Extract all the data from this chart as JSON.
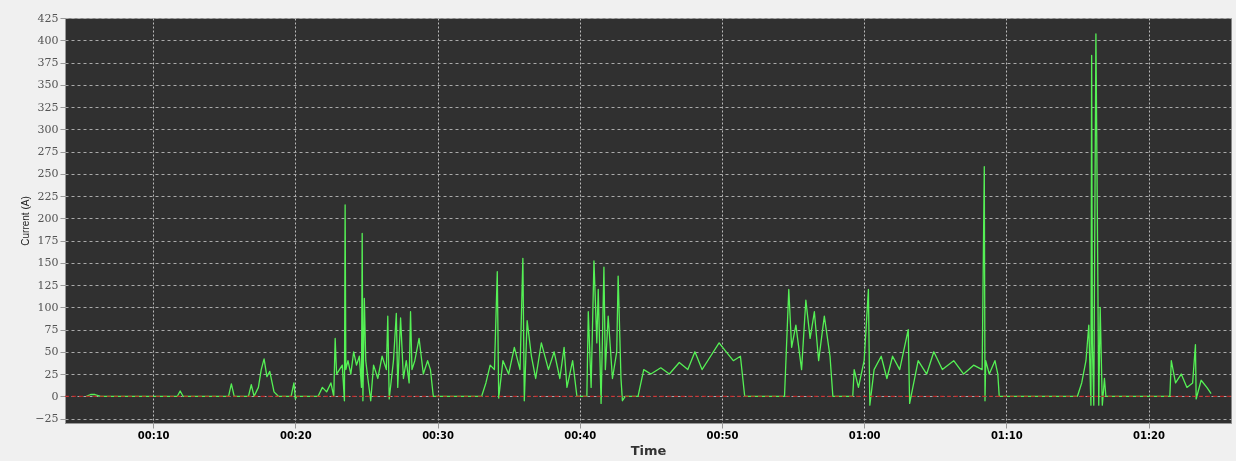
{
  "chart_data": {
    "type": "line",
    "xlabel": "Time",
    "ylabel": "Current (A)",
    "x": [
      5.3,
      5.6,
      5.9,
      6.3,
      11.7,
      11.9,
      12.1,
      15.3,
      15.5,
      15.7,
      16.7,
      16.9,
      17.1,
      17.4,
      17.6,
      17.8,
      18.0,
      18.2,
      18.5,
      18.8,
      19.7,
      19.9,
      20.0,
      20.1,
      21.6,
      21.9,
      22.2,
      22.5,
      22.7,
      22.8,
      22.9,
      23.1,
      23.3,
      23.45,
      23.5,
      23.55,
      23.7,
      23.9,
      24.1,
      24.3,
      24.5,
      24.65,
      24.7,
      24.75,
      24.85,
      24.95,
      25.1,
      25.3,
      25.5,
      25.8,
      26.1,
      26.4,
      26.5,
      26.6,
      26.9,
      27.1,
      27.2,
      27.4,
      27.6,
      27.8,
      28.0,
      28.1,
      28.2,
      28.4,
      28.7,
      29.0,
      29.3,
      29.5,
      29.7,
      33.1,
      33.4,
      33.7,
      34.0,
      34.2,
      34.3,
      34.6,
      35.0,
      35.4,
      35.8,
      36.0,
      36.1,
      36.3,
      36.6,
      36.9,
      37.3,
      37.8,
      38.2,
      38.6,
      38.9,
      39.1,
      39.5,
      39.8,
      40.5,
      40.6,
      40.8,
      41.0,
      41.2,
      41.3,
      41.5,
      41.7,
      41.8,
      42.0,
      42.3,
      42.6,
      42.7,
      42.9,
      43.0,
      43.2,
      44.1,
      44.5,
      45.0,
      45.7,
      46.3,
      47.0,
      47.6,
      48.1,
      48.6,
      49.2,
      49.8,
      50.3,
      50.8,
      51.3,
      51.6,
      54.4,
      54.7,
      54.9,
      55.2,
      55.6,
      55.9,
      56.2,
      56.5,
      56.8,
      57.2,
      57.6,
      57.8,
      59.2,
      59.3,
      59.6,
      60.0,
      60.3,
      60.4,
      60.7,
      61.2,
      61.6,
      62.0,
      62.5,
      63.1,
      63.2,
      63.8,
      64.4,
      64.9,
      65.5,
      66.3,
      67.0,
      67.7,
      68.3,
      68.45,
      68.5,
      68.55,
      68.8,
      69.2,
      69.4,
      69.5,
      75.0,
      75.3,
      75.6,
      75.8,
      75.95,
      76.0,
      76.05,
      76.15,
      76.3,
      76.4,
      76.5,
      76.6,
      76.75,
      76.9,
      77.0,
      81.5,
      81.6,
      81.9,
      82.3,
      82.7,
      83.1,
      83.3,
      83.35,
      83.7,
      84.1,
      84.4
    ],
    "values": [
      0,
      2,
      2,
      0,
      0,
      6,
      0,
      0,
      14,
      0,
      0,
      13,
      0,
      10,
      30,
      42,
      22,
      28,
      5,
      0,
      0,
      15,
      -3,
      0,
      0,
      10,
      5,
      15,
      0,
      65,
      25,
      30,
      35,
      -5,
      215,
      30,
      40,
      25,
      50,
      35,
      45,
      10,
      183,
      -5,
      110,
      40,
      20,
      -5,
      35,
      20,
      45,
      30,
      90,
      -3,
      40,
      93,
      10,
      88,
      20,
      40,
      15,
      95,
      30,
      40,
      65,
      25,
      40,
      30,
      0,
      0,
      15,
      35,
      30,
      140,
      -2,
      40,
      25,
      55,
      30,
      155,
      -5,
      85,
      45,
      20,
      60,
      30,
      50,
      20,
      55,
      10,
      40,
      0,
      0,
      95,
      10,
      152,
      60,
      120,
      -8,
      145,
      30,
      90,
      20,
      50,
      135,
      20,
      -5,
      0,
      0,
      30,
      25,
      32,
      25,
      38,
      30,
      50,
      30,
      45,
      60,
      50,
      40,
      45,
      0,
      0,
      120,
      55,
      80,
      30,
      108,
      65,
      95,
      40,
      90,
      45,
      0,
      0,
      30,
      10,
      40,
      120,
      -10,
      30,
      45,
      20,
      45,
      30,
      75,
      -8,
      40,
      25,
      50,
      30,
      40,
      25,
      35,
      30,
      258,
      -5,
      40,
      25,
      40,
      25,
      0,
      0,
      15,
      40,
      80,
      -10,
      383,
      60,
      -10,
      407,
      205,
      -10,
      100,
      -10,
      20,
      0,
      0,
      40,
      15,
      25,
      10,
      15,
      58,
      -3,
      18,
      10,
      3
    ],
    "color": "#55f055",
    "xlim": [
      3.8,
      85.8
    ],
    "xticks": [
      {
        "value": 10,
        "label": "00:10"
      },
      {
        "value": 20,
        "label": "00:20"
      },
      {
        "value": 30,
        "label": "00:30"
      },
      {
        "value": 40,
        "label": "00:40"
      },
      {
        "value": 50,
        "label": "00:50"
      },
      {
        "value": 60,
        "label": "01:00"
      },
      {
        "value": 70,
        "label": "01:10"
      },
      {
        "value": 80,
        "label": "01:20"
      }
    ],
    "ylim": [
      -30,
      425
    ],
    "yticks": [
      -25,
      0,
      25,
      50,
      75,
      100,
      125,
      150,
      175,
      200,
      225,
      250,
      275,
      300,
      325,
      350,
      375,
      400,
      425
    ],
    "grid": true,
    "marker": "none",
    "line_style": "solid",
    "ref_lines": [
      {
        "axis": "y",
        "value": 0,
        "color": "#cc2222",
        "line_style": "dashed"
      }
    ]
  }
}
